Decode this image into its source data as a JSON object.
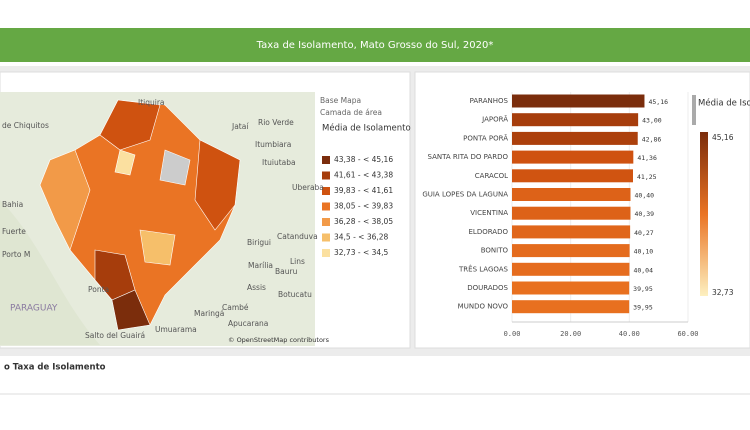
{
  "header": {
    "title": "Taxa de Isolamento, Mato Grosso do Sul, 2020*"
  },
  "map": {
    "layer_title": "Base Mapa",
    "layer_subtitle": "Camada de área",
    "legend_title": "Média de Isolamento",
    "legend": [
      {
        "label": "43,38 - < 45,16",
        "color": "#7b2d0c"
      },
      {
        "label": "41,61 - < 43,38",
        "color": "#a63d0c"
      },
      {
        "label": "39,83 - < 41,61",
        "color": "#cf5210"
      },
      {
        "label": "38,05 - < 39,83",
        "color": "#ea7424"
      },
      {
        "label": "36,28 - < 38,05",
        "color": "#f29a48"
      },
      {
        "label": "34,5 - < 36,28",
        "color": "#f6bf6a"
      },
      {
        "label": "32,73 - < 34,5",
        "color": "#fbe0a0"
      }
    ],
    "places": [
      "Itiquira",
      "Jataí",
      "Rio Verde",
      "Itumbiara",
      "Ituiutaba",
      "Uberaba",
      "de Chiquitos",
      "Bahia",
      "Fuerte",
      "Porto M",
      "Birigui",
      "Catanduva",
      "Marília",
      "Bauru",
      "Lins",
      "Assis",
      "Botucatu",
      "PARAGUAY",
      "Ponta",
      "Cambé",
      "Maringá",
      "Apucarana",
      "Umuarama",
      "Salto del Guairá"
    ],
    "attribution": "© OpenStreetMap contributors"
  },
  "chart_data": {
    "type": "bar",
    "orientation": "horizontal",
    "categories": [
      "PARANHOS",
      "JAPORÃ",
      "PONTA PORÃ",
      "SANTA RITA DO PARDO",
      "CARACOL",
      "GUIA LOPES DA LAGUNA",
      "VICENTINA",
      "ELDORADO",
      "BONITO",
      "TRÊS LAGOAS",
      "DOURADOS",
      "MUNDO NOVO"
    ],
    "values": [
      45.16,
      43.0,
      42.86,
      41.36,
      41.25,
      40.4,
      40.39,
      40.27,
      40.1,
      40.04,
      39.95,
      39.95
    ],
    "value_labels": [
      "45,16",
      "43,00",
      "42,86",
      "41,36",
      "41,25",
      "40,40",
      "40,39",
      "40,27",
      "40,10",
      "40,04",
      "39,95",
      "39,95"
    ],
    "colors": [
      "#7b2d0c",
      "#a63d0c",
      "#ac400c",
      "#cf5210",
      "#d05411",
      "#dd6218",
      "#dd6218",
      "#e0661a",
      "#e46b1d",
      "#e56c1e",
      "#e8701f",
      "#e8701f"
    ],
    "xlim": [
      0,
      60
    ],
    "xticks": [
      {
        "value": 0,
        "label": "0.00"
      },
      {
        "value": 20,
        "label": "20.00"
      },
      {
        "value": 40,
        "label": "40.00"
      },
      {
        "value": 60,
        "label": "60.00"
      }
    ],
    "legend_title": "Média de Isolamento p",
    "legend_max": "45,16",
    "legend_min": "32,73"
  },
  "footer": {
    "title": "o Taxa de Isolamento"
  }
}
